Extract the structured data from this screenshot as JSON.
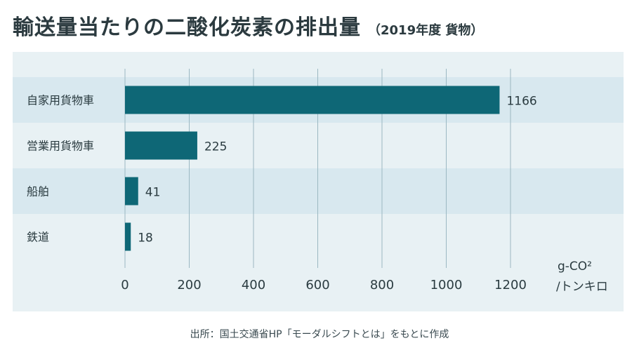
{
  "title": "輸送量当たりの二酸化炭素の排出量",
  "subtitle": "（2019年度 貨物）",
  "source": "出所：国土交通省HP「モーダルシフトとは」をもとに作成",
  "colors": {
    "bar": "#0e6776",
    "panel": "#e8f1f4",
    "band": "#d8e8ef",
    "grid": "#9bb8c2"
  },
  "chart_data": {
    "type": "bar",
    "orientation": "horizontal",
    "categories": [
      "自家用貨物車",
      "営業用貨物車",
      "船舶",
      "鉄道"
    ],
    "values": [
      1166,
      225,
      41,
      18
    ],
    "value_labels": [
      "1166",
      "225",
      "41",
      "18"
    ],
    "xlim": [
      0,
      1300
    ],
    "xticks": [
      0,
      200,
      400,
      600,
      800,
      1000,
      1200
    ],
    "xtick_labels": [
      "0",
      "200",
      "400",
      "600",
      "800",
      "1000",
      "1200"
    ],
    "unit_line1": "g-CO²",
    "unit_line2": "/トンキロ",
    "grid": true
  }
}
